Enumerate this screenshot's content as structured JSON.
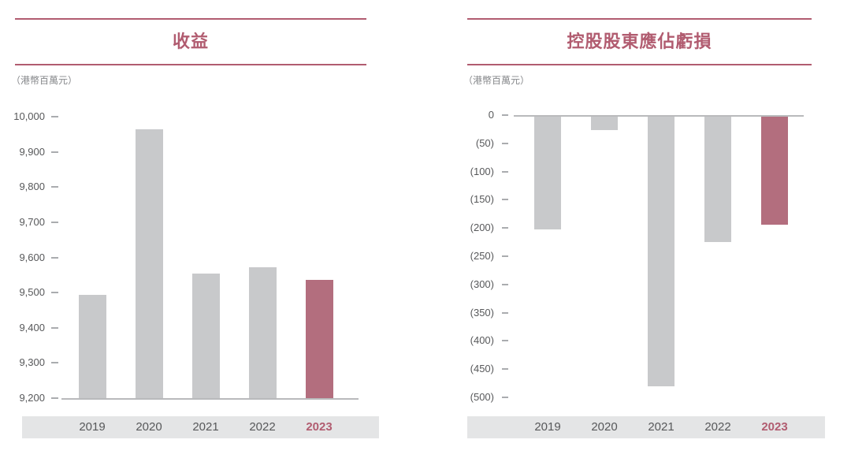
{
  "colors": {
    "accent": "#b15c70",
    "bar_gray": "#c8c9cb",
    "bar_highlight": "#b36e7e",
    "strip_bg": "#e4e5e6",
    "axis_text": "#57585a",
    "unit_text": "#85878a",
    "tick_dash": "#aaacaf",
    "baseline": "#b9babc"
  },
  "chart_data": [
    {
      "type": "bar",
      "title": "收益",
      "ylabel": "（港幣百萬元）",
      "xlabel": "",
      "categories": [
        "2019",
        "2020",
        "2021",
        "2022",
        "2023"
      ],
      "values": [
        9493,
        9965,
        9555,
        9571,
        9536
      ],
      "ylim": [
        9200,
        10000
      ],
      "ytick_values": [
        10000,
        9900,
        9800,
        9700,
        9600,
        9500,
        9400,
        9300,
        9200
      ],
      "ytick_labels": [
        "10,000",
        "9,900",
        "9,800",
        "9,700",
        "9,600",
        "9,500",
        "9,400",
        "9,300",
        "9,200"
      ],
      "highlight_year": "2023",
      "grid": false,
      "legend": false
    },
    {
      "type": "bar",
      "title": "控股股東應佔虧損",
      "ylabel": "（港幣百萬元）",
      "xlabel": "",
      "categories": [
        "2019",
        "2020",
        "2021",
        "2022",
        "2023"
      ],
      "values": [
        -202,
        -26,
        -480,
        -225,
        -194
      ],
      "ylim": [
        -500,
        0
      ],
      "ytick_values": [
        0,
        -50,
        -100,
        -150,
        -200,
        -250,
        -300,
        -350,
        -400,
        -450,
        -500
      ],
      "ytick_labels": [
        "0",
        "(50)",
        "(100)",
        "(150)",
        "(200)",
        "(250)",
        "(300)",
        "(350)",
        "(400)",
        "(450)",
        "(500)"
      ],
      "highlight_year": "2023",
      "grid": false,
      "legend": false
    }
  ]
}
